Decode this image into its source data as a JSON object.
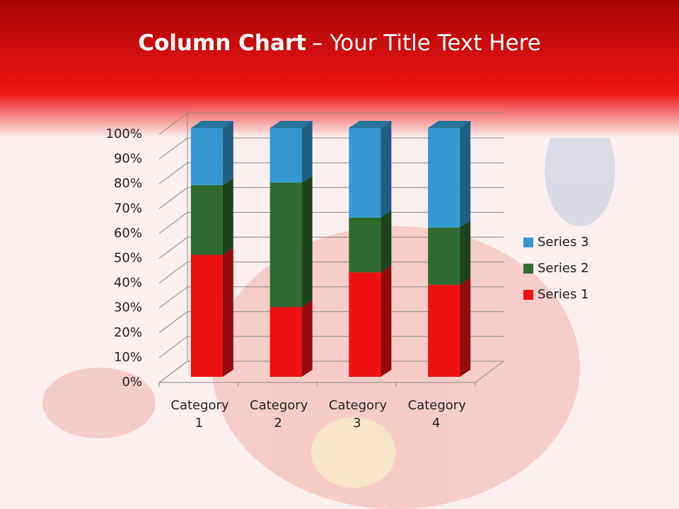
{
  "chart_data": {
    "type": "bar3d_stacked_percent",
    "title_bold": "Column Chart",
    "title_rest": "– Your Title Text Here",
    "categories": [
      "Category 1",
      "Category 2",
      "Category 3",
      "Category 4"
    ],
    "series": [
      {
        "name": "Series 1",
        "color": "#ee1111",
        "values": [
          49,
          28,
          42,
          37
        ]
      },
      {
        "name": "Series 2",
        "color": "#2f6b30",
        "values": [
          28,
          50,
          22,
          23
        ]
      },
      {
        "name": "Series 3",
        "color": "#3399d0",
        "values": [
          23,
          22,
          36,
          40
        ]
      }
    ],
    "ylim": [
      0,
      100
    ],
    "yticks": [
      {
        "value": 0,
        "label": "0%"
      },
      {
        "value": 10,
        "label": "10%"
      },
      {
        "value": 20,
        "label": "20%"
      },
      {
        "value": 30,
        "label": "30%"
      },
      {
        "value": 40,
        "label": "40%"
      },
      {
        "value": 50,
        "label": "50%"
      },
      {
        "value": 60,
        "label": "60%"
      },
      {
        "value": 70,
        "label": "70%"
      },
      {
        "value": 80,
        "label": "80%"
      },
      {
        "value": 90,
        "label": "90%"
      },
      {
        "value": 100,
        "label": "100%"
      }
    ],
    "grid": true,
    "legend": "right"
  }
}
